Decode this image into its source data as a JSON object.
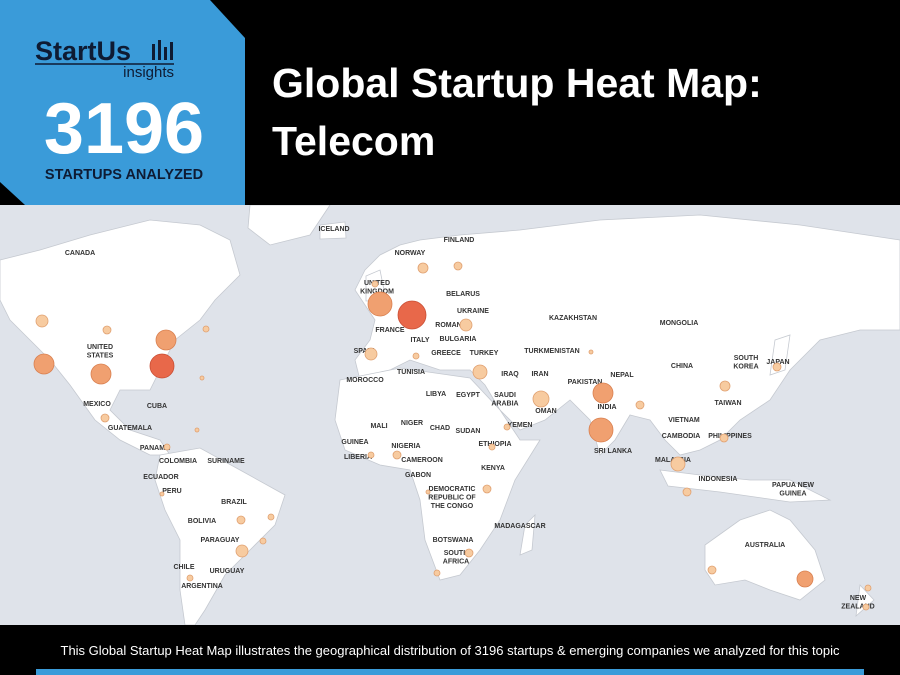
{
  "logo": {
    "name": "StartUs",
    "tagline": "insights"
  },
  "stat": {
    "value": 3196,
    "label": "STARTUPS ANALYZED"
  },
  "title": {
    "lines": [
      "Global Startup Heat Map:",
      "Telecom"
    ]
  },
  "map": {
    "labels": [
      [
        "ICELAND"
      ],
      [
        "FINLAND"
      ],
      [
        "NORWAY"
      ],
      [
        "CANADA"
      ],
      [
        "UNITED",
        "KINGDOM"
      ],
      [
        "BELARUS"
      ],
      [
        "UKRAINE"
      ],
      [
        "KAZAKHSTAN"
      ],
      [
        "MONGOLIA"
      ],
      [
        "FRANCE"
      ],
      [
        "ITALY"
      ],
      [
        "ROMANIA"
      ],
      [
        "BULGARIA"
      ],
      [
        "GREECE"
      ],
      [
        "TURKEY"
      ],
      [
        "TURKMENISTAN"
      ],
      [
        "UNITED",
        "STATES"
      ],
      [
        "SOUTH",
        "KOREA"
      ],
      [
        "CHINA"
      ],
      [
        "JAPAN"
      ],
      [
        "SPAIN"
      ],
      [
        "MOROCCO"
      ],
      [
        "TUNISIA"
      ],
      [
        "IRAQ"
      ],
      [
        "IRAN"
      ],
      [
        "PAKISTAN"
      ],
      [
        "NEPAL"
      ],
      [
        "LIBYA"
      ],
      [
        "EGYPT"
      ],
      [
        "SAUDI",
        "ARABIA"
      ],
      [
        "MEXICO"
      ],
      [
        "CUBA"
      ],
      [
        "TAIWAN"
      ],
      [
        "INDIA"
      ],
      [
        "OMAN"
      ],
      [
        "MALI"
      ],
      [
        "NIGER"
      ],
      [
        "CHAD"
      ],
      [
        "SUDAN"
      ],
      [
        "YEMEN"
      ],
      [
        "VIETNAM"
      ],
      [
        "GUATEMALA"
      ],
      [
        "CAMBODIA"
      ],
      [
        "PHILIPPINES"
      ],
      [
        "GUINEA"
      ],
      [
        "NIGERIA"
      ],
      [
        "ETHIOPIA"
      ],
      [
        "PANAMA"
      ],
      [
        "SRI LANKA"
      ],
      [
        "LIBERIA"
      ],
      [
        "CAMEROON"
      ],
      [
        "COLOMBIA"
      ],
      [
        "SURINAME"
      ],
      [
        "KENYA"
      ],
      [
        "MALAYSIA"
      ],
      [
        "GABON"
      ],
      [
        "ECUADOR"
      ],
      [
        "DEMOCRATIC",
        "REPUBLIC OF",
        "THE CONGO"
      ],
      [
        "INDONESIA"
      ],
      [
        "PAPUA NEW",
        "GUINEA"
      ],
      [
        "PERU"
      ],
      [
        "BRAZIL"
      ],
      [
        "MADAGASCAR"
      ],
      [
        "BOLIVIA"
      ],
      [
        "PARAGUAY"
      ],
      [
        "BOTSWANA"
      ],
      [
        "AUSTRALIA"
      ],
      [
        "SOUTH",
        "AFRICA"
      ],
      [
        "CHILE"
      ],
      [
        "URUGUAY"
      ],
      [
        "ARGENTINA"
      ],
      [
        "NEW",
        "ZEALAND"
      ]
    ]
  },
  "footer": {
    "text": "This Global Startup Heat Map illustrates the geographical distribution of 3196 startups & emerging companies we analyzed for this topic"
  }
}
